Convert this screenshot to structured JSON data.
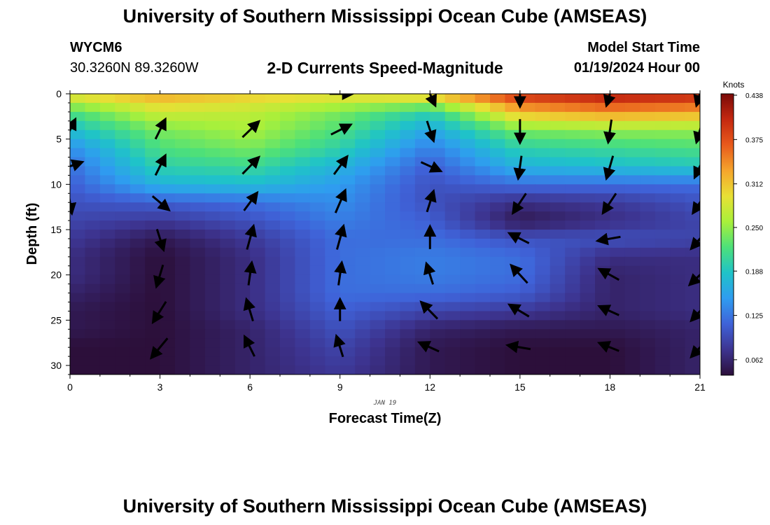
{
  "header": {
    "title": "University of Southern Mississippi Ocean Cube (AMSEAS)",
    "station_id": "WYCM6",
    "coordinates": "30.3260N  89.3260W",
    "subtitle": "2-D Currents Speed-Magnitude",
    "model_start_label": "Model Start Time",
    "model_start_value": "01/19/2024 Hour 00"
  },
  "footer": {
    "title": "University of Southern Mississippi Ocean Cube (AMSEAS)"
  },
  "chart_data": {
    "type": "heatmap",
    "title": "2-D Currents Speed-Magnitude",
    "xlabel": "Forecast Time(Z)",
    "ylabel": "Depth (ft)",
    "x_date_label": "JAN 19",
    "xlim": [
      0,
      21
    ],
    "ylim": [
      0,
      31
    ],
    "y_inverted": true,
    "x_ticks": [
      0,
      3,
      6,
      9,
      12,
      15,
      18,
      21
    ],
    "y_ticks": [
      0,
      5,
      10,
      15,
      20,
      25,
      30
    ],
    "colorbar": {
      "unit": "Knots",
      "ticks": [
        "0.062",
        "0.125",
        "0.188",
        "0.250",
        "0.312",
        "0.375",
        "0.438"
      ],
      "range": [
        0.04,
        0.44
      ],
      "colors": [
        "#2c0f3a",
        "#3d3490",
        "#3f62d8",
        "#2f9cf0",
        "#1fc3c8",
        "#4de07a",
        "#a9f03a",
        "#e8e035",
        "#f5a52c",
        "#e85a1c",
        "#c42810",
        "#7a0a08"
      ]
    },
    "speed_field": {
      "x": [
        0,
        3,
        6,
        9,
        12,
        15,
        18,
        21
      ],
      "depth": [
        0,
        2,
        4,
        6,
        8,
        10,
        12,
        14,
        16,
        18,
        20,
        22,
        24,
        26,
        28,
        31
      ],
      "speed": [
        [
          0.3,
          0.33,
          0.31,
          0.3,
          0.32,
          0.4,
          0.42,
          0.41
        ],
        [
          0.22,
          0.28,
          0.27,
          0.24,
          0.2,
          0.32,
          0.34,
          0.33
        ],
        [
          0.18,
          0.24,
          0.26,
          0.22,
          0.16,
          0.24,
          0.25,
          0.25
        ],
        [
          0.14,
          0.22,
          0.24,
          0.2,
          0.13,
          0.2,
          0.21,
          0.22
        ],
        [
          0.12,
          0.2,
          0.21,
          0.17,
          0.11,
          0.17,
          0.18,
          0.19
        ],
        [
          0.11,
          0.17,
          0.18,
          0.15,
          0.1,
          0.12,
          0.12,
          0.12
        ],
        [
          0.1,
          0.11,
          0.12,
          0.14,
          0.1,
          0.07,
          0.08,
          0.1
        ],
        [
          0.09,
          0.08,
          0.1,
          0.13,
          0.11,
          0.05,
          0.07,
          0.09
        ],
        [
          0.08,
          0.05,
          0.08,
          0.12,
          0.12,
          0.1,
          0.1,
          0.09
        ],
        [
          0.07,
          0.04,
          0.07,
          0.12,
          0.13,
          0.12,
          0.07,
          0.07
        ],
        [
          0.07,
          0.04,
          0.07,
          0.12,
          0.13,
          0.12,
          0.06,
          0.07
        ],
        [
          0.06,
          0.04,
          0.07,
          0.12,
          0.12,
          0.11,
          0.06,
          0.07
        ],
        [
          0.05,
          0.04,
          0.07,
          0.11,
          0.09,
          0.08,
          0.06,
          0.07
        ],
        [
          0.05,
          0.04,
          0.06,
          0.1,
          0.06,
          0.05,
          0.05,
          0.06
        ],
        [
          0.04,
          0.04,
          0.06,
          0.09,
          0.05,
          0.04,
          0.04,
          0.06
        ],
        [
          0.04,
          0.04,
          0.06,
          0.08,
          0.05,
          0.04,
          0.04,
          0.06
        ]
      ]
    },
    "vectors": [
      {
        "x": 0,
        "depth": 4,
        "dx": 0.3,
        "dy": -2.0
      },
      {
        "x": 0,
        "depth": 8,
        "dx": 0.7,
        "dy": -0.8
      },
      {
        "x": 0,
        "depth": 12,
        "dx": 0.1,
        "dy": 2.0
      },
      {
        "x": 3,
        "depth": 4,
        "dx": 0.3,
        "dy": -2.0
      },
      {
        "x": 3,
        "depth": 8,
        "dx": 0.3,
        "dy": -2.0
      },
      {
        "x": 3,
        "depth": 12,
        "dx": 0.5,
        "dy": 1.4
      },
      {
        "x": 3,
        "depth": 16,
        "dx": 0.2,
        "dy": 2.1
      },
      {
        "x": 3,
        "depth": 20,
        "dx": -0.2,
        "dy": 2.2
      },
      {
        "x": 3,
        "depth": 24,
        "dx": -0.4,
        "dy": 2.1
      },
      {
        "x": 3,
        "depth": 28,
        "dx": -0.5,
        "dy": 2.0
      },
      {
        "x": 6,
        "depth": 4,
        "dx": 0.5,
        "dy": -1.6
      },
      {
        "x": 6,
        "depth": 8,
        "dx": 0.5,
        "dy": -1.7
      },
      {
        "x": 6,
        "depth": 12,
        "dx": 0.4,
        "dy": -1.8
      },
      {
        "x": 6,
        "depth": 16,
        "dx": 0.2,
        "dy": -2.4
      },
      {
        "x": 6,
        "depth": 20,
        "dx": 0.1,
        "dy": -2.3
      },
      {
        "x": 6,
        "depth": 24,
        "dx": -0.2,
        "dy": -2.2
      },
      {
        "x": 6,
        "depth": 28,
        "dx": -0.3,
        "dy": -2.0
      },
      {
        "x": 9,
        "depth": 0,
        "dx": 0.7,
        "dy": 0.0
      },
      {
        "x": 9,
        "depth": 4,
        "dx": 0.6,
        "dy": -1.0
      },
      {
        "x": 9,
        "depth": 8,
        "dx": 0.4,
        "dy": -1.8
      },
      {
        "x": 9,
        "depth": 12,
        "dx": 0.3,
        "dy": -2.3
      },
      {
        "x": 9,
        "depth": 16,
        "dx": 0.2,
        "dy": -2.4
      },
      {
        "x": 9,
        "depth": 20,
        "dx": 0.1,
        "dy": -2.3
      },
      {
        "x": 9,
        "depth": 24,
        "dx": 0.0,
        "dy": -2.2
      },
      {
        "x": 9,
        "depth": 28,
        "dx": -0.2,
        "dy": -2.1
      },
      {
        "x": 12,
        "depth": 0,
        "dx": 0.3,
        "dy": 2.2
      },
      {
        "x": 12,
        "depth": 4,
        "dx": 0.2,
        "dy": 2.0
      },
      {
        "x": 12,
        "depth": 8,
        "dx": 0.6,
        "dy": 0.9
      },
      {
        "x": 12,
        "depth": 12,
        "dx": 0.2,
        "dy": -2.1
      },
      {
        "x": 12,
        "depth": 16,
        "dx": 0.0,
        "dy": -2.3
      },
      {
        "x": 12,
        "depth": 20,
        "dx": -0.2,
        "dy": -2.1
      },
      {
        "x": 12,
        "depth": 24,
        "dx": -0.5,
        "dy": -1.7
      },
      {
        "x": 12,
        "depth": 28,
        "dx": -0.6,
        "dy": -0.9
      },
      {
        "x": 15,
        "depth": 0,
        "dx": 0.0,
        "dy": 2.4
      },
      {
        "x": 15,
        "depth": 4,
        "dx": 0.0,
        "dy": 2.4
      },
      {
        "x": 15,
        "depth": 8,
        "dx": -0.1,
        "dy": 2.3
      },
      {
        "x": 15,
        "depth": 12,
        "dx": -0.4,
        "dy": 2.0
      },
      {
        "x": 15,
        "depth": 16,
        "dx": -0.6,
        "dy": -1.0
      },
      {
        "x": 15,
        "depth": 20,
        "dx": -0.5,
        "dy": -1.8
      },
      {
        "x": 15,
        "depth": 24,
        "dx": -0.6,
        "dy": -1.2
      },
      {
        "x": 15,
        "depth": 28,
        "dx": -0.7,
        "dy": -0.4
      },
      {
        "x": 18,
        "depth": 0,
        "dx": -0.2,
        "dy": 2.2
      },
      {
        "x": 18,
        "depth": 4,
        "dx": -0.1,
        "dy": 2.3
      },
      {
        "x": 18,
        "depth": 8,
        "dx": -0.2,
        "dy": 2.3
      },
      {
        "x": 18,
        "depth": 12,
        "dx": -0.4,
        "dy": 2.0
      },
      {
        "x": 18,
        "depth": 16,
        "dx": -0.7,
        "dy": 0.4
      },
      {
        "x": 18,
        "depth": 20,
        "dx": -0.6,
        "dy": -1.1
      },
      {
        "x": 18,
        "depth": 24,
        "dx": -0.6,
        "dy": -0.9
      },
      {
        "x": 18,
        "depth": 28,
        "dx": -0.6,
        "dy": -0.8
      },
      {
        "x": 21,
        "depth": 0,
        "dx": -0.2,
        "dy": 2.2
      },
      {
        "x": 21,
        "depth": 4,
        "dx": -0.2,
        "dy": 2.3
      },
      {
        "x": 21,
        "depth": 8,
        "dx": -0.3,
        "dy": 2.1
      },
      {
        "x": 21,
        "depth": 12,
        "dx": -0.4,
        "dy": 2.0
      },
      {
        "x": 21,
        "depth": 16,
        "dx": -0.5,
        "dy": 1.9
      },
      {
        "x": 21,
        "depth": 20,
        "dx": -0.6,
        "dy": 1.9
      },
      {
        "x": 21,
        "depth": 24,
        "dx": -0.5,
        "dy": 1.8
      },
      {
        "x": 21,
        "depth": 28,
        "dx": -0.5,
        "dy": 1.8
      }
    ]
  }
}
